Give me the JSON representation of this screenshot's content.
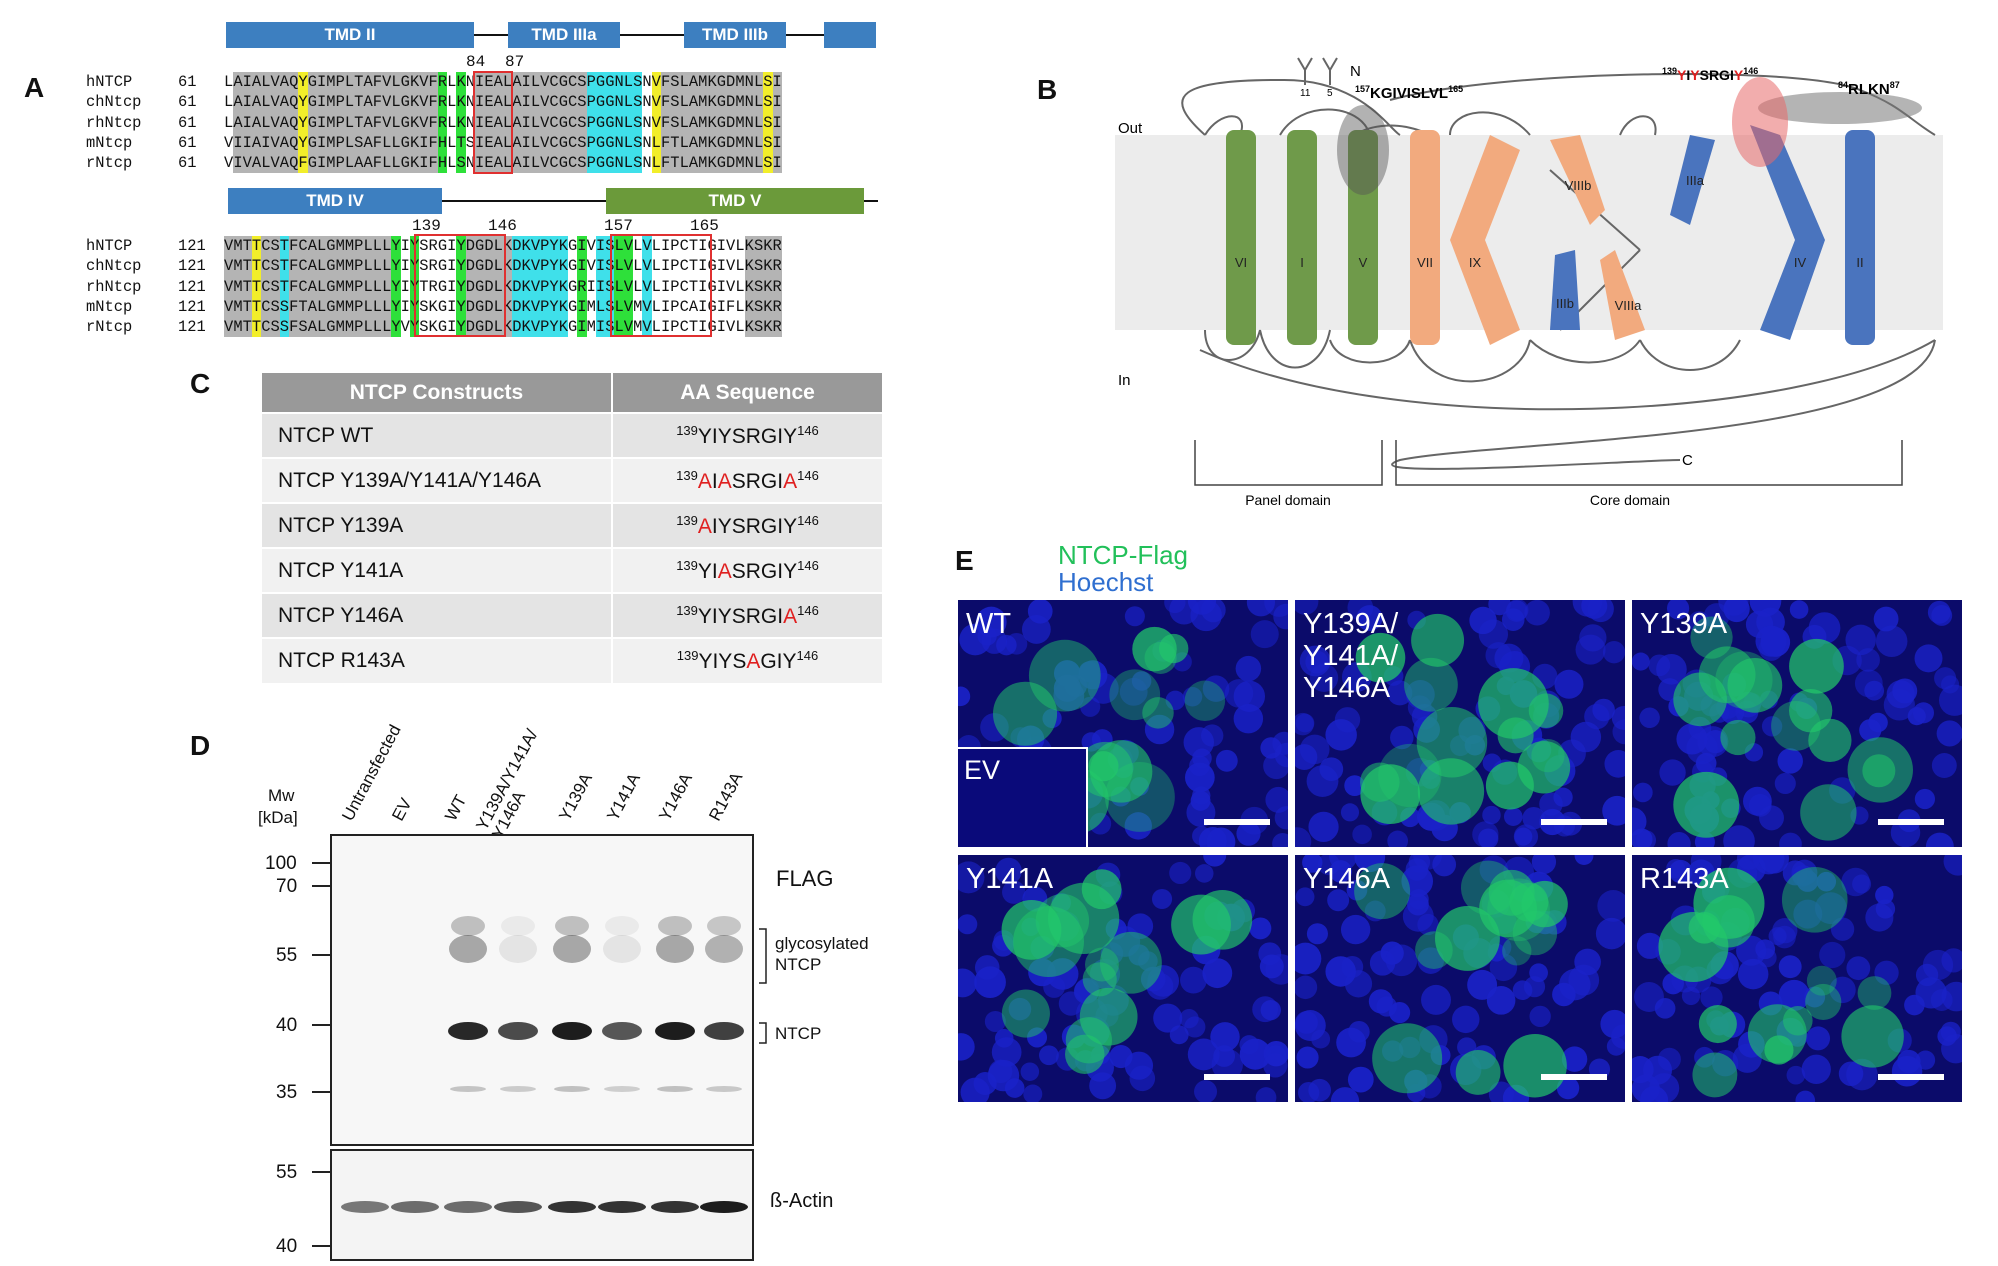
{
  "panel_letters": {
    "a": "A",
    "b": "B",
    "c": "C",
    "d": "D",
    "e": "E"
  },
  "panel_a": {
    "tmd_top": [
      "TMD II",
      "TMD IIIa",
      "TMD IIIb"
    ],
    "tmd_bottom": [
      "TMD IV",
      "TMD V"
    ],
    "top_positions": [
      "84",
      "87"
    ],
    "bottom_positions": [
      "139",
      "146",
      "157",
      "165"
    ],
    "block1": {
      "start": "61",
      "rows": [
        {
          "name": "hNTCP",
          "seq": "LAIALVAQYGIMPLTAFVLGKVFRLKNIEALAILVCGCSPGGNLSNVFSLAMKGDMNLSI"
        },
        {
          "name": "chNtcp",
          "seq": "LAIALVAQYGIMPLTAFVLGKVFRLKNIEALAILVCGCSPGGNLSNVFSLAMKGDMNLSI"
        },
        {
          "name": "rhNtcp",
          "seq": "LAIALVAQYGIMPLTAFVLGKVFRLKNIEALAILVCGCSPGGNLSNVFSLAMKGDMNLSI"
        },
        {
          "name": "mNtcp",
          "seq": "VIIAIVAQYGIMPLSAFLLGKIFHLTSIEALAILVCGCSPGGNLSNLFTLAMKGDMNLSI"
        },
        {
          "name": "rNtcp",
          "seq": "VIVALVAQFGIMPLAAFLLGKIFHLSNIEALAILVCGCSPGGNLSNLFTLAMKGDMNLSI"
        }
      ]
    },
    "block2": {
      "start": "121",
      "rows": [
        {
          "name": "hNTCP",
          "seq": "VMTTCSTFCALGMMPLLLYIYSRGIYDGDLKDKVPYKGIVISLVLVLIPCTIGIVLKSKR"
        },
        {
          "name": "chNtcp",
          "seq": "VMTTCSTFCALGMMPLLLYIYSRGIYDGDLKDKVPYKGIVISLVLVLIPCTIGIVLKSKR"
        },
        {
          "name": "rhNtcp",
          "seq": "VMTTCSTFCALGMMPLLLYIYTRGIYDGDLKDKVPYKGRIISLVLVLIPCTIGIVLKSKR"
        },
        {
          "name": "mNtcp",
          "seq": "VMTTCSSFTALGMMPLLLYIYSKGIYDGDLKDKVPYKGIMLSLVMVLIPCAIGIFLKSKR"
        },
        {
          "name": "rNtcp",
          "seq": "VMTTCSSFSALGMMPLLLYVYSKGIYDGDLKDKVPYKGIMISLVMVLIPCTIGIVLKSKR"
        }
      ]
    },
    "colors": {
      "gray": "#b4b4b4",
      "yellow": "#f2ee2a",
      "cyan": "#3fe0ea",
      "green": "#2ee03a"
    }
  },
  "panel_b": {
    "out": "Out",
    "in": "In",
    "n_term": "N",
    "c_term": "C",
    "glyco1": "11",
    "glyco2": "5",
    "motif_a": {
      "pre": "157",
      "text": "KGIVISLVL",
      "post": "165"
    },
    "motif_b": {
      "pre": "139",
      "y1": "Y",
      "i": "I",
      "y2": "Y",
      "mid": "SRGI",
      "y3": "Y",
      "post": "146"
    },
    "motif_c": {
      "pre": "84",
      "text": "RLKN",
      "post": "87"
    },
    "helix_labels": {
      "VI": "VI",
      "I": "I",
      "V": "V",
      "VII": "VII",
      "IX": "IX",
      "VIIIb": "VIIIb",
      "IIIb": "IIIb",
      "VIIIa": "VIIIa",
      "IIIa": "IIIa",
      "IV": "IV",
      "II": "II"
    },
    "panel_domain": "Panel domain",
    "core_domain": "Core domain",
    "colors": {
      "green": "#6f9a4a",
      "orange": "#f2aa7e",
      "blue": "#4a74be"
    }
  },
  "panel_c": {
    "headers": [
      "NTCP Constructs",
      "AA Sequence"
    ],
    "rows": [
      {
        "name": "NTCP WT",
        "pre": "139",
        "parts": [
          {
            "t": "YIYSRGIY",
            "m": false
          }
        ],
        "post": "146"
      },
      {
        "name": "NTCP Y139A/Y141A/Y146A",
        "pre": "139",
        "parts": [
          {
            "t": "A",
            "m": true
          },
          {
            "t": "I",
            "m": false
          },
          {
            "t": "A",
            "m": true
          },
          {
            "t": "SRGI",
            "m": false
          },
          {
            "t": "A",
            "m": true
          }
        ],
        "post": "146"
      },
      {
        "name": "NTCP Y139A",
        "pre": "139",
        "parts": [
          {
            "t": "A",
            "m": true
          },
          {
            "t": "IYSRGIY",
            "m": false
          }
        ],
        "post": "146"
      },
      {
        "name": "NTCP Y141A",
        "pre": "139",
        "parts": [
          {
            "t": "YI",
            "m": false
          },
          {
            "t": "A",
            "m": true
          },
          {
            "t": "SRGIY",
            "m": false
          }
        ],
        "post": "146"
      },
      {
        "name": "NTCP Y146A",
        "pre": "139",
        "parts": [
          {
            "t": "YIYSRGI",
            "m": false
          },
          {
            "t": "A",
            "m": true
          }
        ],
        "post": "146"
      },
      {
        "name": "NTCP R143A",
        "pre": "139",
        "parts": [
          {
            "t": "YIYS",
            "m": false
          },
          {
            "t": "A",
            "m": true
          },
          {
            "t": "GIY",
            "m": false
          }
        ],
        "post": "146"
      }
    ]
  },
  "panel_d": {
    "mw_label": [
      "Mw",
      "[kDa]"
    ],
    "lanes": [
      "Untransfected",
      "EV",
      "WT",
      "Y139A/Y141A/\nY146A",
      "Y139A",
      "Y141A",
      "Y146A",
      "R143A"
    ],
    "markers_top": [
      "100",
      "70",
      "55",
      "40",
      "35"
    ],
    "markers_bottom": [
      "55",
      "40"
    ],
    "flag": "FLAG",
    "glyco": [
      "glycosylated",
      "NTCP"
    ],
    "ntcp": "NTCP",
    "actin": "ß-Actin"
  },
  "panel_e": {
    "legend_green": "NTCP-Flag",
    "legend_blue": "Hoechst",
    "legend_colors": {
      "green": "#22c05a",
      "blue": "#2f6fd0"
    },
    "panels": [
      {
        "label": "WT",
        "inset": "EV"
      },
      {
        "label": "Y139A/\nY141A/\nY146A"
      },
      {
        "label": "Y139A"
      },
      {
        "label": "Y141A"
      },
      {
        "label": "Y146A"
      },
      {
        "label": "R143A"
      }
    ]
  }
}
